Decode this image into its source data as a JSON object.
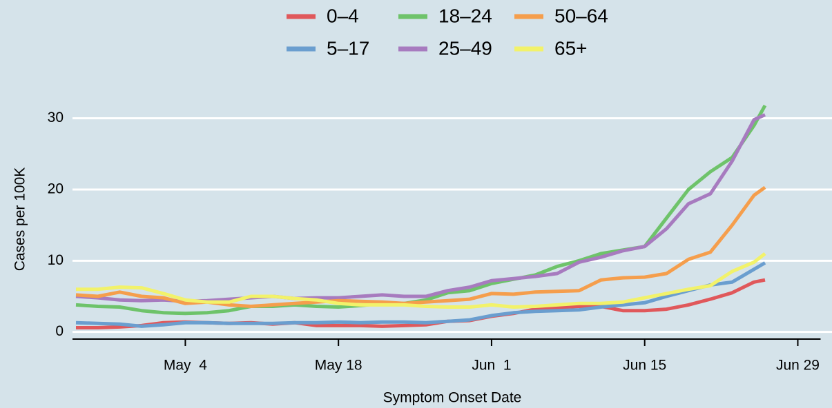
{
  "chart_data": {
    "type": "line",
    "x_label": "Symptom Onset Date",
    "y_label": "Cases per 100K",
    "x": [
      "Apr 24",
      "Apr 26",
      "Apr 28",
      "Apr 30",
      "May 2",
      "May 4",
      "May 6",
      "May 8",
      "May 10",
      "May 12",
      "May 14",
      "May 16",
      "May 18",
      "May 20",
      "May 22",
      "May 24",
      "May 26",
      "May 28",
      "May 30",
      "Jun 1",
      "Jun 3",
      "Jun 5",
      "Jun 7",
      "Jun 9",
      "Jun 11",
      "Jun 13",
      "Jun 15",
      "Jun 17",
      "Jun 19",
      "Jun 21",
      "Jun 23",
      "Jun 25",
      "Jun 26"
    ],
    "series": [
      {
        "name": "0–4",
        "color": "#e0585b",
        "values": [
          0.6,
          0.6,
          0.7,
          0.9,
          1.3,
          1.4,
          1.3,
          1.2,
          1.3,
          1.1,
          1.3,
          0.9,
          0.9,
          0.9,
          0.8,
          0.9,
          1.0,
          1.5,
          1.6,
          2.2,
          2.6,
          3.2,
          3.4,
          3.6,
          3.6,
          3.0,
          3.0,
          3.2,
          3.8,
          4.6,
          5.5,
          7.0,
          7.3
        ]
      },
      {
        "name": "5–17",
        "color": "#6a9ecf",
        "values": [
          1.3,
          1.2,
          1.1,
          0.8,
          1.0,
          1.3,
          1.3,
          1.2,
          1.2,
          1.2,
          1.3,
          1.3,
          1.4,
          1.3,
          1.4,
          1.4,
          1.3,
          1.5,
          1.7,
          2.3,
          2.7,
          2.9,
          3.0,
          3.1,
          3.5,
          3.8,
          4.1,
          5.0,
          5.8,
          6.6,
          7.0,
          8.8,
          9.7
        ]
      },
      {
        "name": "18–24",
        "color": "#6ec36a",
        "values": [
          3.8,
          3.6,
          3.5,
          3.0,
          2.7,
          2.6,
          2.7,
          3.0,
          3.6,
          3.6,
          3.8,
          3.6,
          3.5,
          3.7,
          4.0,
          4.0,
          4.5,
          5.5,
          5.8,
          6.8,
          7.4,
          8.0,
          9.2,
          10.0,
          11.0,
          11.5,
          12.0,
          16.0,
          20.0,
          22.5,
          24.5,
          29.0,
          31.8
        ]
      },
      {
        "name": "25–49",
        "color": "#a77bbf",
        "values": [
          5.0,
          4.8,
          4.5,
          4.4,
          4.5,
          4.3,
          4.4,
          4.6,
          4.8,
          5.0,
          4.7,
          4.8,
          4.8,
          5.0,
          5.2,
          5.0,
          5.0,
          5.8,
          6.3,
          7.2,
          7.5,
          7.8,
          8.2,
          9.8,
          10.5,
          11.4,
          12.0,
          14.5,
          18.0,
          19.4,
          24.0,
          29.8,
          30.5
        ]
      },
      {
        "name": "50–64",
        "color": "#f59e4c",
        "values": [
          5.2,
          5.0,
          5.6,
          5.0,
          4.8,
          4.0,
          4.2,
          3.8,
          3.6,
          3.8,
          4.0,
          4.2,
          4.4,
          4.3,
          4.2,
          4.0,
          4.2,
          4.4,
          4.6,
          5.4,
          5.3,
          5.6,
          5.7,
          5.8,
          7.3,
          7.6,
          7.7,
          8.2,
          10.2,
          11.2,
          15.0,
          19.2,
          20.3
        ]
      },
      {
        "name": "65+",
        "color": "#f2f26a",
        "values": [
          6.0,
          6.0,
          6.3,
          6.2,
          5.4,
          4.5,
          4.2,
          4.2,
          5.0,
          5.0,
          4.7,
          4.5,
          4.0,
          3.8,
          3.8,
          3.8,
          3.6,
          3.5,
          3.5,
          3.8,
          3.5,
          3.6,
          3.8,
          4.0,
          4.0,
          4.2,
          4.8,
          5.4,
          6.0,
          6.5,
          8.5,
          9.8,
          11.0
        ]
      }
    ],
    "xlim": [
      "Apr 24",
      "Jul 2"
    ],
    "xticks": [
      {
        "value": "May 4",
        "label": "May  4"
      },
      {
        "value": "May 18",
        "label": "May 18"
      },
      {
        "value": "Jun 1",
        "label": "Jun  1"
      },
      {
        "value": "Jun 15",
        "label": "Jun 15"
      },
      {
        "value": "Jun 29",
        "label": "Jun 29"
      }
    ],
    "ylim": [
      -1,
      35
    ],
    "yticks": [
      0,
      10,
      20,
      30
    ],
    "grid": true,
    "legend": "top"
  }
}
